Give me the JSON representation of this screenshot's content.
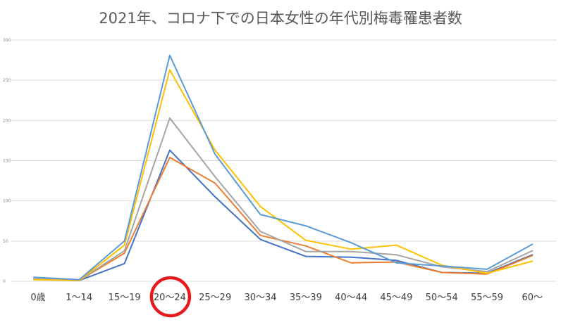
{
  "chart_data": {
    "type": "line",
    "title": "2021年、コロナ下での日本女性の年代別梅毒罹患者数",
    "xlabel": "",
    "ylabel": "",
    "ylim": [
      0,
      300
    ],
    "yticks": [
      "0",
      "50",
      "100",
      "150",
      "200",
      "250",
      "300"
    ],
    "grid": true,
    "legend": "none",
    "categories": [
      "0歳",
      "1～14",
      "15～19",
      "20～24",
      "25～29",
      "30～34",
      "35～39",
      "40～44",
      "45～49",
      "50～54",
      "55～59",
      "60～"
    ],
    "highlighted_category": "20～24",
    "highlight_color": "#e8191c",
    "series": [
      {
        "color": "#4472c4",
        "values": [
          3,
          1,
          22,
          163,
          105,
          52,
          31,
          30,
          26,
          11,
          10,
          33
        ]
      },
      {
        "color": "#ed7d31",
        "values": [
          3,
          1,
          35,
          154,
          122,
          57,
          44,
          23,
          24,
          11,
          9,
          32
        ]
      },
      {
        "color": "#a5a5a5",
        "values": [
          3,
          1,
          38,
          203,
          130,
          62,
          37,
          37,
          33,
          18,
          12,
          38
        ]
      },
      {
        "color": "#ffc000",
        "values": [
          2,
          1,
          45,
          263,
          163,
          93,
          51,
          40,
          45,
          20,
          10,
          25
        ]
      },
      {
        "color": "#5b9bd5",
        "values": [
          5,
          2,
          50,
          281,
          158,
          83,
          69,
          48,
          23,
          19,
          15,
          46
        ]
      }
    ]
  }
}
